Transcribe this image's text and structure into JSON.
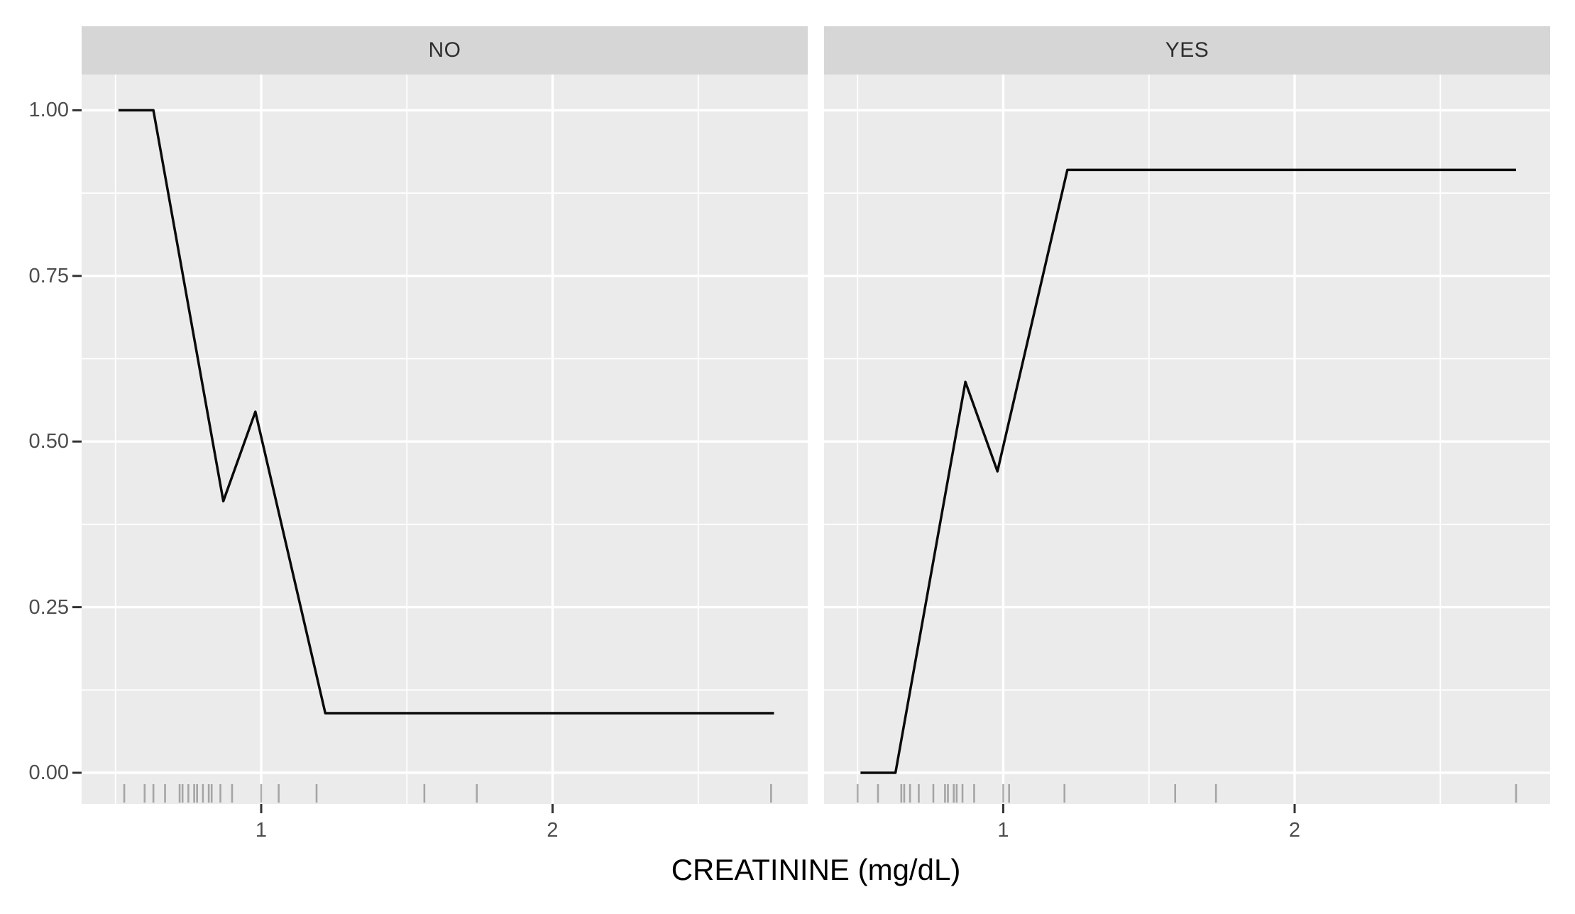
{
  "chart_data": {
    "type": "line",
    "title": "",
    "xlabel": "CREATININE (mg/dL)",
    "ylabel": "",
    "xlim": [
      0.38,
      2.88
    ],
    "ylim": [
      0,
      1
    ],
    "x_ticks": [
      1,
      2
    ],
    "x_tick_labels": [
      "1",
      "2"
    ],
    "y_ticks": [
      0,
      0.25,
      0.5,
      0.75,
      1
    ],
    "y_tick_labels": [
      "0.00",
      "0.25",
      "0.50",
      "0.75",
      "1.00"
    ],
    "grid": true,
    "legend": false,
    "facet_variable_values": [
      "NO",
      "YES"
    ],
    "facets": [
      {
        "label": "NO",
        "line": {
          "x": [
            0.51,
            0.63,
            0.87,
            0.98,
            1.22,
            2.76
          ],
          "y": [
            1.0,
            1.0,
            0.41,
            0.545,
            0.09,
            0.09
          ]
        },
        "rug_x": [
          0.53,
          0.6,
          0.63,
          0.67,
          0.72,
          0.73,
          0.75,
          0.77,
          0.78,
          0.8,
          0.82,
          0.83,
          0.86,
          0.9,
          1.0,
          1.06,
          1.19,
          1.56,
          1.74,
          2.75
        ]
      },
      {
        "label": "YES",
        "line": {
          "x": [
            0.51,
            0.63,
            0.87,
            0.98,
            1.22,
            2.76
          ],
          "y": [
            0.0,
            0.0,
            0.59,
            0.455,
            0.91,
            0.91
          ]
        },
        "rug_x": [
          0.5,
          0.57,
          0.65,
          0.66,
          0.68,
          0.71,
          0.76,
          0.8,
          0.81,
          0.83,
          0.84,
          0.86,
          0.9,
          1.0,
          1.02,
          1.21,
          1.59,
          1.73,
          2.76
        ]
      }
    ],
    "colors": {
      "background": "#FFFFFF",
      "panel_bg": "#EBEBEB",
      "strip_bg": "#D6D6D6",
      "grid": "#FFFFFF",
      "line": "#0A0A0A",
      "rug": "#6B6B6B",
      "tick_mark": "#333333",
      "tick_label": "#4D4D4D",
      "axis_title": "#000000"
    }
  }
}
